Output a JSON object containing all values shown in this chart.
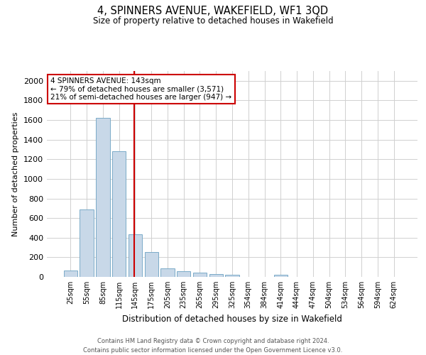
{
  "title": "4, SPINNERS AVENUE, WAKEFIELD, WF1 3QD",
  "subtitle": "Size of property relative to detached houses in Wakefield",
  "xlabel": "Distribution of detached houses by size in Wakefield",
  "ylabel": "Number of detached properties",
  "footer_line1": "Contains HM Land Registry data © Crown copyright and database right 2024.",
  "footer_line2": "Contains public sector information licensed under the Open Government Licence v3.0.",
  "bar_color": "#c8d8e8",
  "bar_edge_color": "#7aaac8",
  "vline_color": "#cc0000",
  "vline_x": 4,
  "annotation_text": "4 SPINNERS AVENUE: 143sqm\n← 79% of detached houses are smaller (3,571)\n21% of semi-detached houses are larger (947) →",
  "annotation_box_color": "#ffffff",
  "annotation_box_edge": "#cc0000",
  "categories": [
    "25sqm",
    "55sqm",
    "85sqm",
    "115sqm",
    "145sqm",
    "175sqm",
    "205sqm",
    "235sqm",
    "265sqm",
    "295sqm",
    "325sqm",
    "354sqm",
    "384sqm",
    "414sqm",
    "444sqm",
    "474sqm",
    "504sqm",
    "534sqm",
    "564sqm",
    "594sqm",
    "624sqm"
  ],
  "values": [
    65,
    690,
    1620,
    1280,
    435,
    250,
    90,
    55,
    40,
    30,
    25,
    0,
    0,
    20,
    0,
    0,
    0,
    0,
    0,
    0,
    0
  ],
  "ylim": [
    0,
    2100
  ],
  "yticks": [
    0,
    200,
    400,
    600,
    800,
    1000,
    1200,
    1400,
    1600,
    1800,
    2000
  ],
  "background_color": "#ffffff",
  "grid_color": "#d0d0d0"
}
